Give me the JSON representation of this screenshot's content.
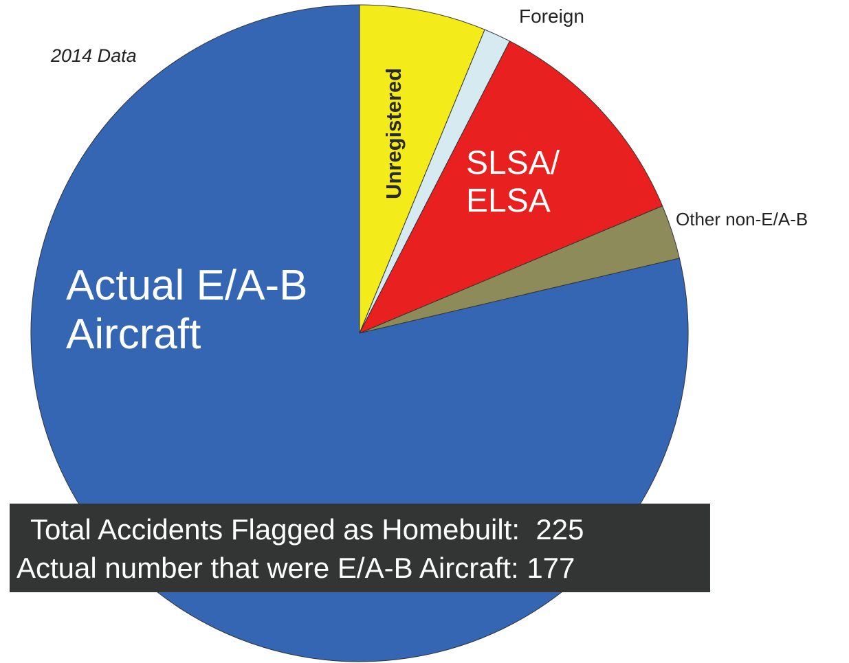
{
  "chart_data": {
    "type": "pie",
    "subtitle": "2014 Data",
    "categories": [
      "Unregistered",
      "Foreign",
      "SLSA/ ELSA",
      "Other non-E/A-B",
      "Actual E/A-B Aircraft"
    ],
    "values": [
      14,
      3,
      25,
      6,
      177
    ],
    "colors": [
      "#f4ec1a",
      "#d6eaf2",
      "#e82120",
      "#8e8b5b",
      "#3466b4"
    ],
    "annotations": [
      {
        "text": "Total Accidents Flagged as Homebuilt:",
        "value": 225
      },
      {
        "text": "Actual number that were E/A-B Aircraft:",
        "value": 177
      }
    ]
  }
}
